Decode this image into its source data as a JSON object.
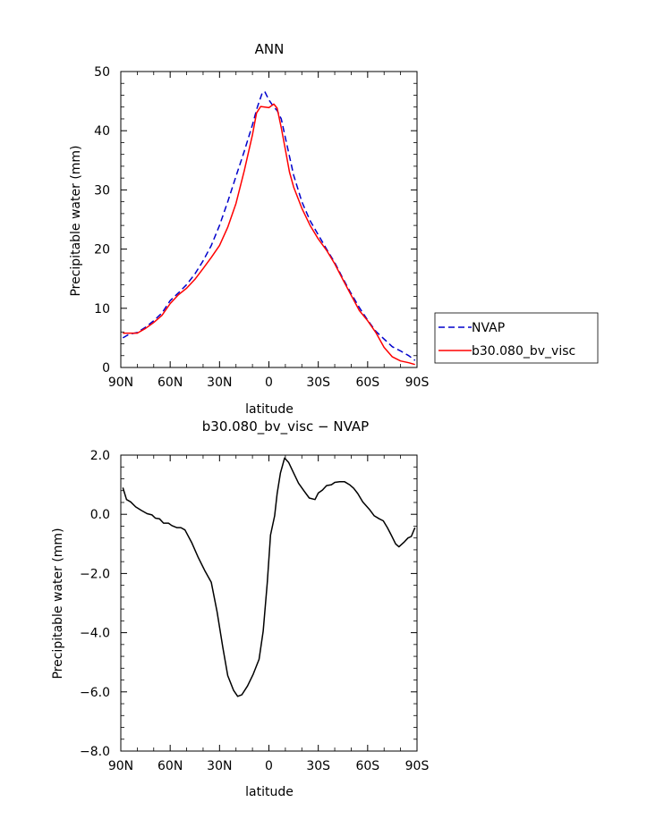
{
  "chart_data": [
    {
      "type": "line",
      "title": "ANN",
      "xlabel": "latitude",
      "ylabel": "Precipitable water (mm)",
      "xlim": [
        90,
        -90
      ],
      "ylim": [
        0,
        50
      ],
      "x_ticks": [
        90,
        60,
        30,
        0,
        -30,
        -60,
        -90
      ],
      "x_tick_labels": [
        "90N",
        "60N",
        "30N",
        "0",
        "30S",
        "60S",
        "90S"
      ],
      "y_ticks": [
        0,
        10,
        20,
        30,
        40,
        50
      ],
      "y_tick_labels": [
        "0",
        "10",
        "20",
        "30",
        "40",
        "50"
      ],
      "legend": {
        "placement": "right"
      },
      "series": [
        {
          "name": "NVAP",
          "color": "#0000cc",
          "dash": true,
          "points": [
            [
              88.75,
              5.0
            ],
            [
              85,
              5.6
            ],
            [
              80,
              5.9
            ],
            [
              75,
              6.8
            ],
            [
              70,
              7.9
            ],
            [
              65,
              9.2
            ],
            [
              60,
              11.3
            ],
            [
              55,
              12.6
            ],
            [
              50,
              14.0
            ],
            [
              45,
              15.8
            ],
            [
              40,
              18.0
            ],
            [
              35,
              20.6
            ],
            [
              30,
              24.0
            ],
            [
              25,
              28.0
            ],
            [
              20,
              32.3
            ],
            [
              15,
              36.5
            ],
            [
              10,
              41.0
            ],
            [
              7,
              44.0
            ],
            [
              4,
              46.4
            ],
            [
              2.5,
              46.6
            ],
            [
              0,
              45.2
            ],
            [
              -3,
              44.0
            ],
            [
              -5,
              43.4
            ],
            [
              -7.5,
              42.0
            ],
            [
              -10,
              38.8
            ],
            [
              -15,
              32.5
            ],
            [
              -20,
              28.0
            ],
            [
              -25,
              24.8
            ],
            [
              -30,
              22.4
            ],
            [
              -35,
              20.0
            ],
            [
              -40,
              17.7
            ],
            [
              -45,
              15.0
            ],
            [
              -50,
              12.5
            ],
            [
              -55,
              10.1
            ],
            [
              -60,
              8.0
            ],
            [
              -65,
              6.1
            ],
            [
              -70,
              4.8
            ],
            [
              -75,
              3.5
            ],
            [
              -80,
              2.8
            ],
            [
              -85,
              2.0
            ],
            [
              -88.75,
              1.2
            ]
          ]
        },
        {
          "name": "b30.080_bv_visc",
          "color": "#ff0000",
          "dash": false,
          "points": [
            [
              88.75,
              5.8
            ],
            [
              85,
              5.8
            ],
            [
              80,
              5.8
            ],
            [
              75,
              6.6
            ],
            [
              70,
              7.6
            ],
            [
              65,
              8.8
            ],
            [
              60,
              10.8
            ],
            [
              55,
              12.3
            ],
            [
              50,
              13.4
            ],
            [
              45,
              14.9
            ],
            [
              40,
              16.7
            ],
            [
              35,
              18.6
            ],
            [
              30,
              20.6
            ],
            [
              25,
              23.7
            ],
            [
              20,
              27.7
            ],
            [
              15,
              33.2
            ],
            [
              10,
              39.3
            ],
            [
              7.5,
              43.0
            ],
            [
              5,
              44.1
            ],
            [
              2.5,
              44.0
            ],
            [
              0,
              43.9
            ],
            [
              -2,
              44.3
            ],
            [
              -3,
              44.5
            ],
            [
              -5,
              43.8
            ],
            [
              -7.5,
              40.5
            ],
            [
              -10,
              36.8
            ],
            [
              -12.5,
              33.0
            ],
            [
              -15,
              30.5
            ],
            [
              -20,
              26.9
            ],
            [
              -25,
              24.0
            ],
            [
              -30,
              21.7
            ],
            [
              -35,
              19.8
            ],
            [
              -40,
              17.5
            ],
            [
              -45,
              14.8
            ],
            [
              -50,
              12.2
            ],
            [
              -55,
              9.6
            ],
            [
              -60,
              7.9
            ],
            [
              -65,
              5.9
            ],
            [
              -70,
              3.4
            ],
            [
              -75,
              1.8
            ],
            [
              -80,
              1.1
            ],
            [
              -85,
              0.8
            ],
            [
              -88.75,
              0.5
            ]
          ]
        }
      ]
    },
    {
      "type": "line",
      "title": "b30.080_bv_visc − NVAP",
      "xlabel": "latitude",
      "ylabel": "Precipitable water (mm)",
      "xlim": [
        90,
        -90
      ],
      "ylim": [
        -8,
        2
      ],
      "x_ticks": [
        90,
        60,
        30,
        0,
        -30,
        -60,
        -90
      ],
      "x_tick_labels": [
        "90N",
        "60N",
        "30N",
        "0",
        "30S",
        "60S",
        "90S"
      ],
      "y_ticks": [
        2,
        0,
        -2,
        -4,
        -6,
        -8
      ],
      "y_tick_labels": [
        "2.0",
        "0.0",
        "−2.0",
        "−4.0",
        "−6.0",
        "−8.0"
      ],
      "series": [
        {
          "color": "#000000",
          "dash": false,
          "points": [
            [
              88.75,
              0.9
            ],
            [
              86.5,
              0.5
            ],
            [
              84,
              0.42
            ],
            [
              81,
              0.25
            ],
            [
              77.5,
              0.13
            ],
            [
              74,
              0.02
            ],
            [
              71,
              -0.02
            ],
            [
              69,
              -0.13
            ],
            [
              66.5,
              -0.15
            ],
            [
              64,
              -0.3
            ],
            [
              61,
              -0.3
            ],
            [
              59,
              -0.38
            ],
            [
              56,
              -0.45
            ],
            [
              53.5,
              -0.45
            ],
            [
              51,
              -0.53
            ],
            [
              47,
              -0.95
            ],
            [
              43,
              -1.45
            ],
            [
              39,
              -1.9
            ],
            [
              35,
              -2.3
            ],
            [
              31.5,
              -3.3
            ],
            [
              28,
              -4.5
            ],
            [
              25,
              -5.45
            ],
            [
              21.5,
              -5.95
            ],
            [
              19,
              -6.15
            ],
            [
              16.5,
              -6.1
            ],
            [
              13,
              -5.8
            ],
            [
              9.5,
              -5.4
            ],
            [
              6,
              -4.9
            ],
            [
              3.5,
              -3.95
            ],
            [
              1,
              -2.3
            ],
            [
              -1,
              -0.7
            ],
            [
              -3.5,
              -0.05
            ],
            [
              -5,
              0.7
            ],
            [
              -7,
              1.4
            ],
            [
              -9.5,
              1.9
            ],
            [
              -12,
              1.75
            ],
            [
              -15,
              1.4
            ],
            [
              -18,
              1.05
            ],
            [
              -21.5,
              0.78
            ],
            [
              -24.5,
              0.55
            ],
            [
              -28,
              0.5
            ],
            [
              -30,
              0.72
            ],
            [
              -32.5,
              0.82
            ],
            [
              -35,
              0.97
            ],
            [
              -38,
              1.0
            ],
            [
              -40,
              1.08
            ],
            [
              -43,
              1.1
            ],
            [
              -46,
              1.1
            ],
            [
              -49,
              1.0
            ],
            [
              -51.5,
              0.88
            ],
            [
              -54,
              0.7
            ],
            [
              -57,
              0.42
            ],
            [
              -61,
              0.17
            ],
            [
              -64,
              -0.05
            ],
            [
              -67,
              -0.15
            ],
            [
              -69.5,
              -0.22
            ],
            [
              -72,
              -0.45
            ],
            [
              -74.5,
              -0.72
            ],
            [
              -77,
              -1.0
            ],
            [
              -79,
              -1.1
            ],
            [
              -82,
              -0.95
            ],
            [
              -84.5,
              -0.8
            ],
            [
              -86.5,
              -0.75
            ],
            [
              -88.75,
              -0.45
            ]
          ]
        }
      ]
    }
  ]
}
